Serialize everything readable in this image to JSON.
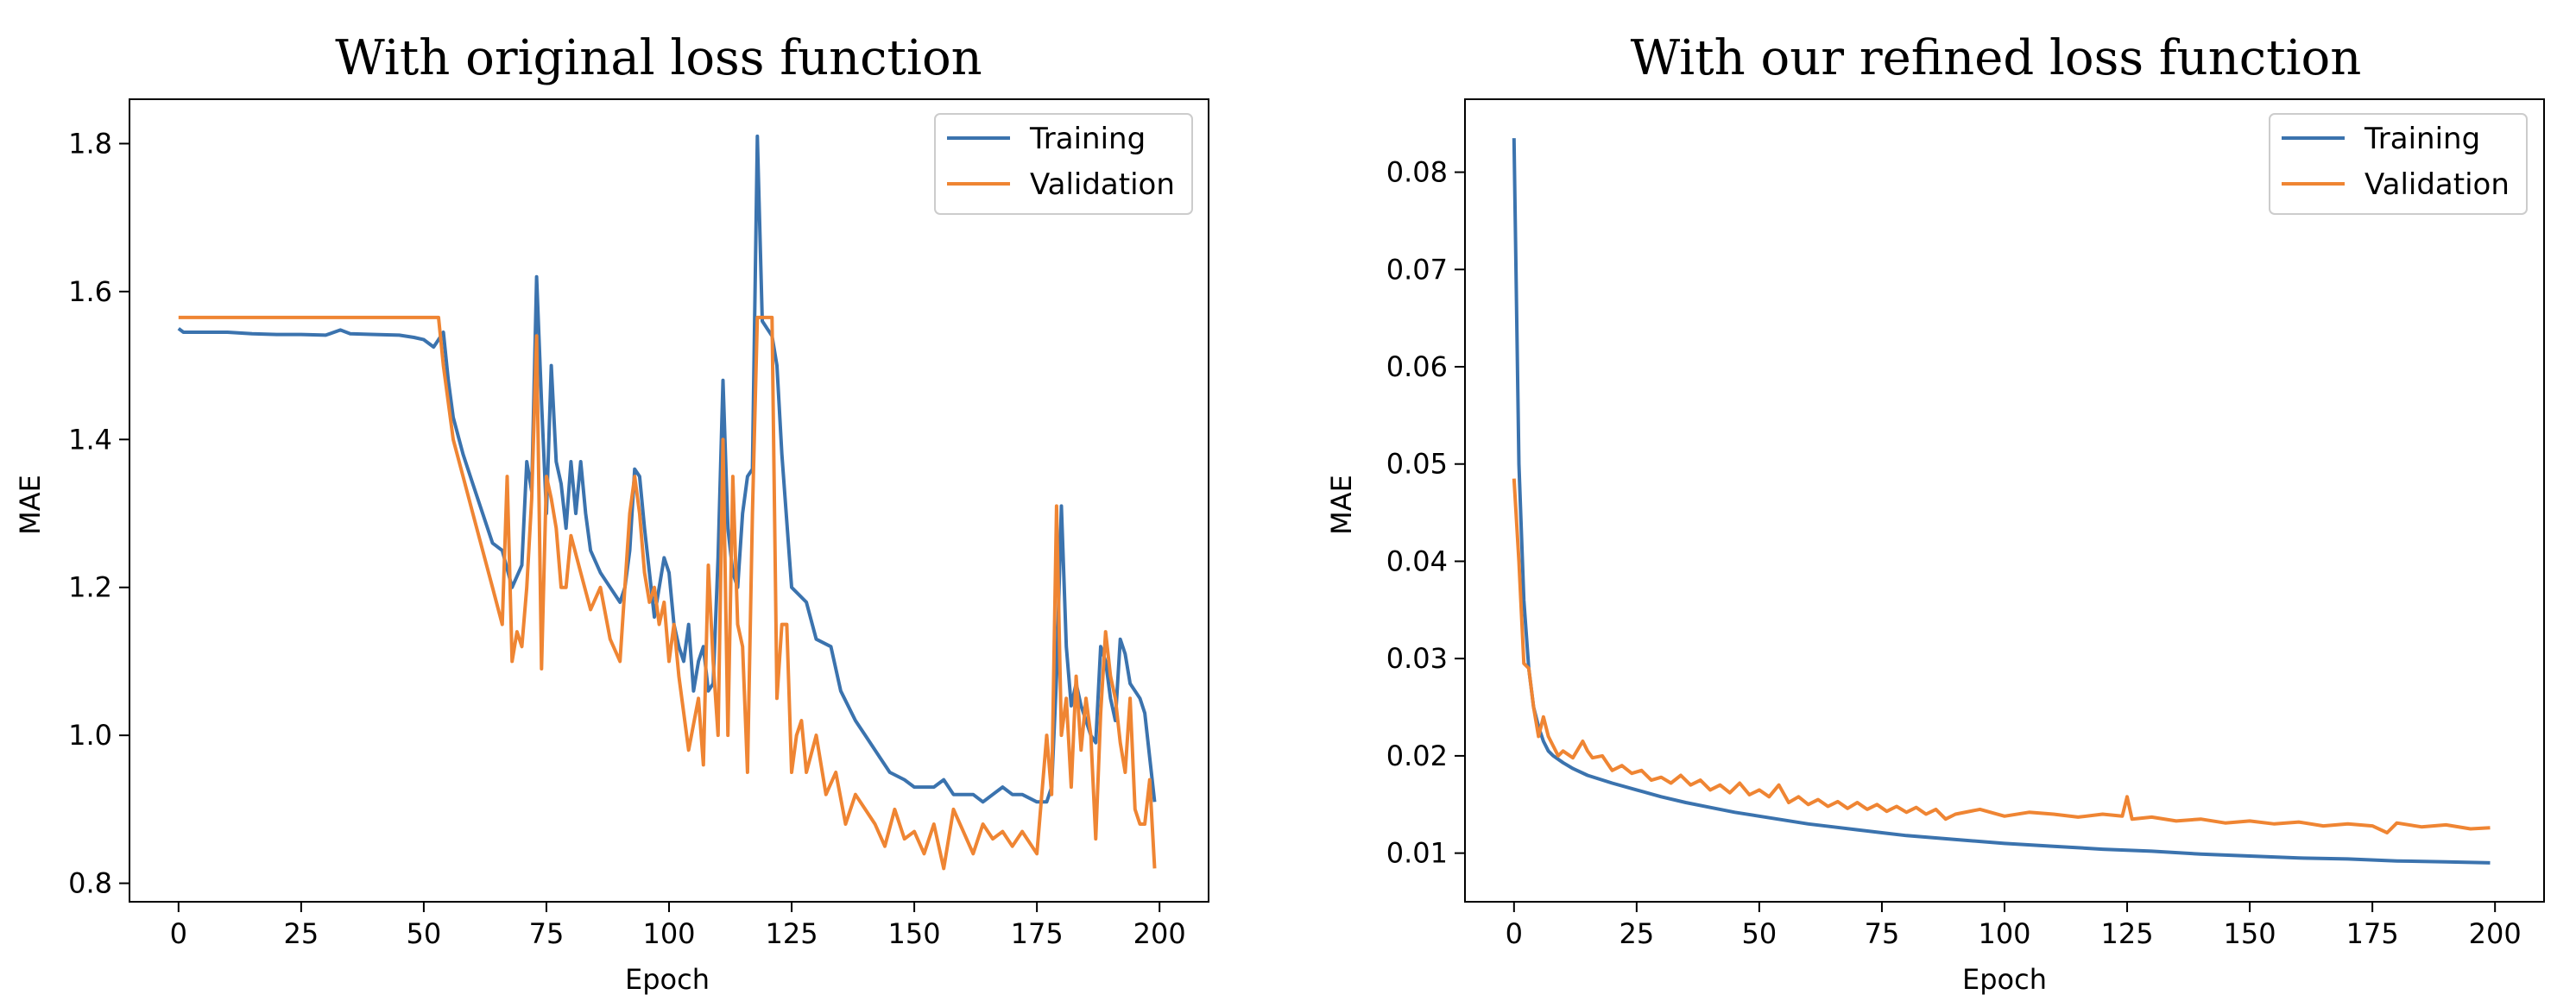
{
  "colors": {
    "training": "#3b73ae",
    "validation": "#ef8533"
  },
  "chart_data": [
    {
      "type": "line",
      "title": "With original loss function",
      "xlabel": "Epoch",
      "ylabel": "MAE",
      "xlim": [
        -10,
        210
      ],
      "ylim": [
        0.775,
        1.86
      ],
      "xticks": [
        0,
        25,
        50,
        75,
        100,
        125,
        150,
        175,
        200
      ],
      "yticks": [
        0.8,
        1.0,
        1.2,
        1.4,
        1.6,
        1.8
      ],
      "ytick_labels": [
        "0.8",
        "1.0",
        "1.2",
        "1.4",
        "1.6",
        "1.8"
      ],
      "legend": [
        "Training",
        "Validation"
      ],
      "legend_position": "upper right",
      "series": [
        {
          "name": "Training",
          "x": [
            0,
            1,
            2,
            5,
            10,
            15,
            20,
            25,
            30,
            33,
            35,
            40,
            45,
            48,
            50,
            52,
            53,
            54,
            55,
            56,
            58,
            60,
            62,
            64,
            66,
            68,
            70,
            71,
            72,
            73,
            74,
            75,
            76,
            77,
            78,
            79,
            80,
            81,
            82,
            83,
            84,
            86,
            88,
            90,
            91,
            92,
            93,
            94,
            95,
            96,
            97,
            98,
            99,
            100,
            101,
            102,
            103,
            104,
            105,
            106,
            107,
            108,
            109,
            110,
            111,
            112,
            113,
            114,
            115,
            116,
            117,
            118,
            119,
            120,
            121,
            122,
            123,
            125,
            128,
            130,
            133,
            135,
            138,
            140,
            143,
            145,
            148,
            150,
            152,
            154,
            156,
            158,
            160,
            162,
            164,
            166,
            168,
            170,
            172,
            175,
            177,
            178,
            179,
            180,
            181,
            182,
            183,
            184,
            185,
            186,
            187,
            188,
            189,
            190,
            191,
            192,
            193,
            194,
            195,
            196,
            197,
            198,
            199
          ],
          "values": [
            1.55,
            1.545,
            1.545,
            1.545,
            1.545,
            1.543,
            1.542,
            1.542,
            1.541,
            1.548,
            1.543,
            1.542,
            1.541,
            1.538,
            1.535,
            1.525,
            1.535,
            1.545,
            1.48,
            1.43,
            1.38,
            1.34,
            1.3,
            1.26,
            1.25,
            1.2,
            1.23,
            1.37,
            1.33,
            1.62,
            1.45,
            1.3,
            1.5,
            1.37,
            1.34,
            1.28,
            1.37,
            1.3,
            1.37,
            1.3,
            1.25,
            1.22,
            1.2,
            1.18,
            1.2,
            1.25,
            1.36,
            1.35,
            1.28,
            1.22,
            1.16,
            1.2,
            1.24,
            1.22,
            1.15,
            1.12,
            1.1,
            1.15,
            1.06,
            1.1,
            1.12,
            1.06,
            1.07,
            1.24,
            1.48,
            1.28,
            1.22,
            1.2,
            1.3,
            1.35,
            1.36,
            1.81,
            1.56,
            1.55,
            1.54,
            1.5,
            1.38,
            1.2,
            1.18,
            1.13,
            1.12,
            1.06,
            1.02,
            1.0,
            0.97,
            0.95,
            0.94,
            0.93,
            0.93,
            0.93,
            0.94,
            0.92,
            0.92,
            0.92,
            0.91,
            0.92,
            0.93,
            0.92,
            0.92,
            0.91,
            0.91,
            0.93,
            1.08,
            1.31,
            1.12,
            1.04,
            1.07,
            1.04,
            1.02,
            1.0,
            0.99,
            1.12,
            1.1,
            1.05,
            1.02,
            1.13,
            1.11,
            1.07,
            1.06,
            1.05,
            1.03,
            0.97,
            0.91
          ]
        },
        {
          "name": "Validation",
          "x": [
            0,
            10,
            20,
            30,
            40,
            50,
            52,
            53,
            54,
            55,
            56,
            58,
            60,
            62,
            64,
            66,
            67,
            68,
            69,
            70,
            71,
            72,
            73,
            74,
            75,
            76,
            77,
            78,
            79,
            80,
            82,
            84,
            86,
            88,
            90,
            92,
            93,
            94,
            95,
            96,
            97,
            98,
            99,
            100,
            101,
            102,
            104,
            106,
            107,
            108,
            109,
            110,
            111,
            112,
            113,
            114,
            115,
            116,
            117,
            118,
            119,
            120,
            121,
            122,
            123,
            124,
            125,
            126,
            127,
            128,
            130,
            132,
            134,
            136,
            138,
            140,
            142,
            144,
            146,
            148,
            150,
            152,
            154,
            156,
            158,
            160,
            162,
            164,
            166,
            168,
            170,
            172,
            175,
            177,
            178,
            179,
            180,
            181,
            182,
            183,
            184,
            185,
            186,
            187,
            188,
            189,
            190,
            191,
            192,
            193,
            194,
            195,
            196,
            197,
            198,
            199
          ],
          "values": [
            1.565,
            1.565,
            1.565,
            1.565,
            1.565,
            1.565,
            1.565,
            1.565,
            1.5,
            1.45,
            1.4,
            1.35,
            1.3,
            1.25,
            1.2,
            1.15,
            1.35,
            1.1,
            1.14,
            1.12,
            1.2,
            1.32,
            1.54,
            1.09,
            1.35,
            1.32,
            1.28,
            1.2,
            1.2,
            1.27,
            1.22,
            1.17,
            1.2,
            1.13,
            1.1,
            1.3,
            1.35,
            1.3,
            1.22,
            1.18,
            1.2,
            1.15,
            1.18,
            1.1,
            1.15,
            1.08,
            0.98,
            1.05,
            0.96,
            1.23,
            1.1,
            1.0,
            1.4,
            1.0,
            1.35,
            1.15,
            1.12,
            0.95,
            1.3,
            1.565,
            1.565,
            1.565,
            1.565,
            1.05,
            1.15,
            1.15,
            0.95,
            1.0,
            1.02,
            0.95,
            1.0,
            0.92,
            0.95,
            0.88,
            0.92,
            0.9,
            0.88,
            0.85,
            0.9,
            0.86,
            0.87,
            0.84,
            0.88,
            0.82,
            0.9,
            0.87,
            0.84,
            0.88,
            0.86,
            0.87,
            0.85,
            0.87,
            0.84,
            1.0,
            0.92,
            1.31,
            1.0,
            1.05,
            0.93,
            1.08,
            0.98,
            1.05,
            1.0,
            0.86,
            1.03,
            1.14,
            1.08,
            1.05,
            0.99,
            0.95,
            1.05,
            0.9,
            0.88,
            0.88,
            0.94,
            0.82
          ]
        }
      ]
    },
    {
      "type": "line",
      "title": "With our refined loss function",
      "xlabel": "Epoch",
      "ylabel": "MAE",
      "xlim": [
        -10,
        210
      ],
      "ylim": [
        0.005,
        0.0875
      ],
      "xticks": [
        0,
        25,
        50,
        75,
        100,
        125,
        150,
        175,
        200
      ],
      "yticks": [
        0.01,
        0.02,
        0.03,
        0.04,
        0.05,
        0.06,
        0.07,
        0.08
      ],
      "ytick_labels": [
        "0.01",
        "0.02",
        "0.03",
        "0.04",
        "0.05",
        "0.06",
        "0.07",
        "0.08"
      ],
      "legend": [
        "Training",
        "Validation"
      ],
      "legend_position": "upper right",
      "series": [
        {
          "name": "Training",
          "x": [
            0,
            1,
            2,
            3,
            4,
            5,
            6,
            7,
            8,
            10,
            12,
            15,
            20,
            25,
            30,
            35,
            40,
            45,
            50,
            55,
            60,
            65,
            70,
            75,
            80,
            90,
            100,
            110,
            120,
            130,
            140,
            150,
            160,
            170,
            180,
            190,
            199
          ],
          "values": [
            0.0835,
            0.05,
            0.036,
            0.029,
            0.025,
            0.023,
            0.0215,
            0.0205,
            0.02,
            0.0193,
            0.0187,
            0.018,
            0.0172,
            0.0165,
            0.0158,
            0.0152,
            0.0147,
            0.0142,
            0.0138,
            0.0134,
            0.013,
            0.0127,
            0.0124,
            0.0121,
            0.0118,
            0.0114,
            0.011,
            0.0107,
            0.0104,
            0.0102,
            0.0099,
            0.0097,
            0.0095,
            0.0094,
            0.0092,
            0.0091,
            0.009
          ]
        },
        {
          "name": "Validation",
          "x": [
            0,
            1,
            2,
            3,
            4,
            5,
            6,
            7,
            8,
            9,
            10,
            12,
            14,
            15,
            16,
            18,
            20,
            22,
            24,
            26,
            28,
            30,
            32,
            34,
            36,
            38,
            40,
            42,
            44,
            46,
            48,
            50,
            52,
            54,
            56,
            58,
            60,
            62,
            64,
            66,
            68,
            70,
            72,
            74,
            76,
            78,
            80,
            82,
            84,
            86,
            88,
            90,
            95,
            100,
            105,
            110,
            115,
            120,
            124,
            125,
            126,
            130,
            135,
            140,
            145,
            150,
            155,
            160,
            165,
            170,
            175,
            178,
            180,
            185,
            190,
            195,
            199
          ],
          "values": [
            0.0485,
            0.04,
            0.0295,
            0.029,
            0.025,
            0.022,
            0.024,
            0.022,
            0.021,
            0.02,
            0.0205,
            0.0198,
            0.0215,
            0.0205,
            0.0198,
            0.02,
            0.0185,
            0.019,
            0.0182,
            0.0185,
            0.0175,
            0.0178,
            0.0172,
            0.018,
            0.017,
            0.0175,
            0.0165,
            0.017,
            0.0162,
            0.0172,
            0.016,
            0.0165,
            0.0158,
            0.017,
            0.0152,
            0.0158,
            0.015,
            0.0155,
            0.0148,
            0.0153,
            0.0146,
            0.0152,
            0.0145,
            0.015,
            0.0143,
            0.0148,
            0.0142,
            0.0147,
            0.014,
            0.0145,
            0.0135,
            0.014,
            0.0145,
            0.0138,
            0.0142,
            0.014,
            0.0137,
            0.014,
            0.0138,
            0.0158,
            0.0135,
            0.0137,
            0.0133,
            0.0135,
            0.0131,
            0.0133,
            0.013,
            0.0132,
            0.0128,
            0.013,
            0.0128,
            0.0121,
            0.0131,
            0.0127,
            0.0129,
            0.0125,
            0.0126
          ]
        }
      ]
    }
  ]
}
